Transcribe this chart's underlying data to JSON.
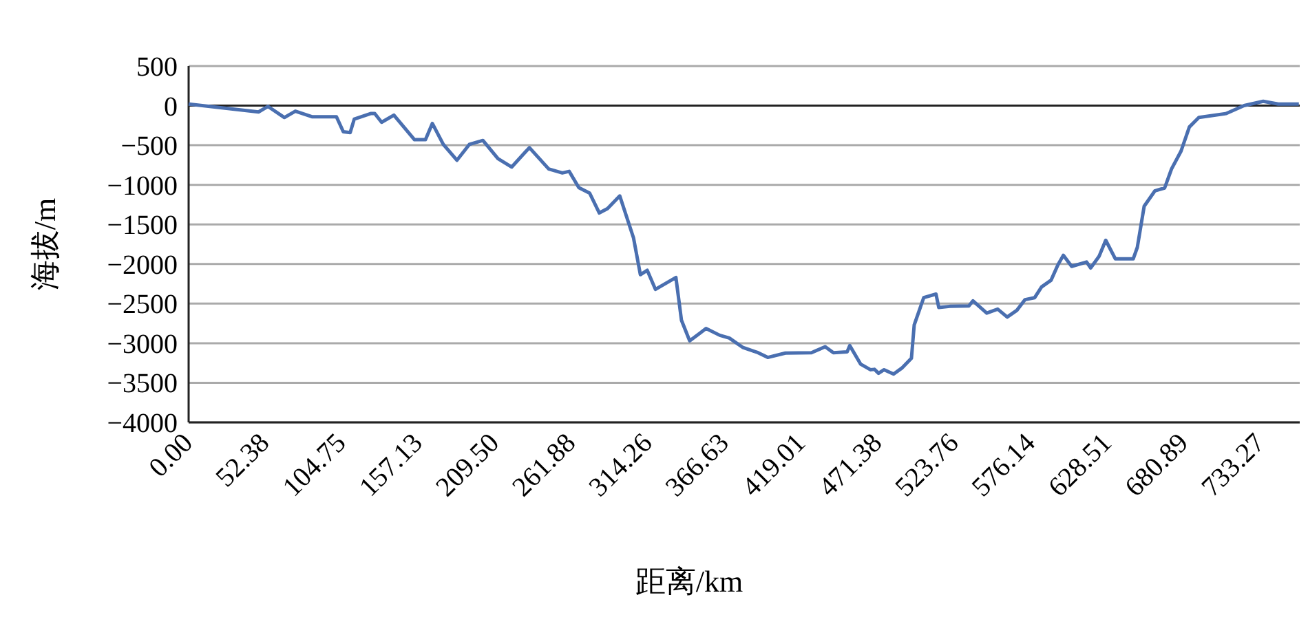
{
  "chart_data": {
    "type": "line",
    "xlabel": "距离/km",
    "ylabel": "海拔/m",
    "xlim": [
      0,
      760
    ],
    "xticks": [
      {
        "value": 0,
        "label": "0.00"
      },
      52.38,
      104.75,
      157.13,
      {
        "value": 209.5,
        "label": "209.50"
      },
      261.88,
      314.26,
      366.63,
      419.01,
      471.38,
      523.76,
      576.14,
      628.51,
      680.89,
      733.27
    ],
    "ylim": [
      -4000,
      500
    ],
    "yticks": [
      -4000,
      -3500,
      -3000,
      -2500,
      -2000,
      -1500,
      -1000,
      -500,
      0,
      500
    ],
    "grid": "y",
    "series": [
      {
        "color": "#4a6fb0",
        "x": [
          0,
          47.8,
          54.3,
          65.5,
          73,
          84.3,
          101.1,
          105.8,
          110.5,
          113.3,
          124.5,
          127.3,
          132,
          140.4,
          154.5,
          162,
          166.7,
          174.2,
          183.5,
          192,
          201.3,
          211.6,
          221,
          233.1,
          246.3,
          255.6,
          260.3,
          266.9,
          274.3,
          280.9,
          286.5,
          294.9,
          304.3,
          309,
          313.7,
          319.3,
          333.3,
          337.1,
          342.7,
          353.9,
          363.3,
          369.8,
          379.2,
          389.5,
          396.1,
          408.2,
          426,
          435.4,
          441,
          450.4,
          452.2,
          459.7,
          466.3,
          469.1,
          471.9,
          475.7,
          482.2,
          487.8,
          494.4,
          496.3,
          502.8,
          511.2,
          513.1,
          520.6,
          533.7,
          536.5,
          545.9,
          553.4,
          559.9,
          566.5,
          572.1,
          578.7,
          583.4,
          589.9,
          594.6,
          598.3,
          604,
          614.2,
          617,
          622.7,
          627.3,
          633.9,
          646.1,
          648.9,
          653.6,
          661,
          667.6,
          672.3,
          678.8,
          684.5,
          691,
          709.7,
          721.9,
          735,
          745.3,
          759.4
        ],
        "values": [
          20,
          -80,
          -10,
          -150,
          -70,
          -140,
          -140,
          -330,
          -340,
          -170,
          -100,
          -100,
          -210,
          -120,
          -430,
          -430,
          -225,
          -490,
          -690,
          -490,
          -440,
          -670,
          -775,
          -530,
          -800,
          -850,
          -830,
          -1035,
          -1105,
          -1355,
          -1300,
          -1140,
          -1670,
          -2135,
          -2080,
          -2320,
          -2170,
          -2710,
          -2970,
          -2815,
          -2900,
          -2935,
          -3055,
          -3120,
          -3180,
          -3125,
          -3120,
          -3045,
          -3120,
          -3110,
          -3030,
          -3265,
          -3335,
          -3330,
          -3380,
          -3335,
          -3390,
          -3315,
          -3190,
          -2770,
          -2425,
          -2380,
          -2550,
          -2535,
          -2530,
          -2465,
          -2620,
          -2570,
          -2670,
          -2585,
          -2450,
          -2425,
          -2290,
          -2205,
          -2010,
          -1890,
          -2030,
          -1975,
          -2050,
          -1905,
          -1700,
          -1935,
          -1935,
          -1790,
          -1270,
          -1075,
          -1040,
          -800,
          -575,
          -270,
          -150,
          -100,
          0,
          55,
          20,
          20
        ]
      }
    ]
  }
}
